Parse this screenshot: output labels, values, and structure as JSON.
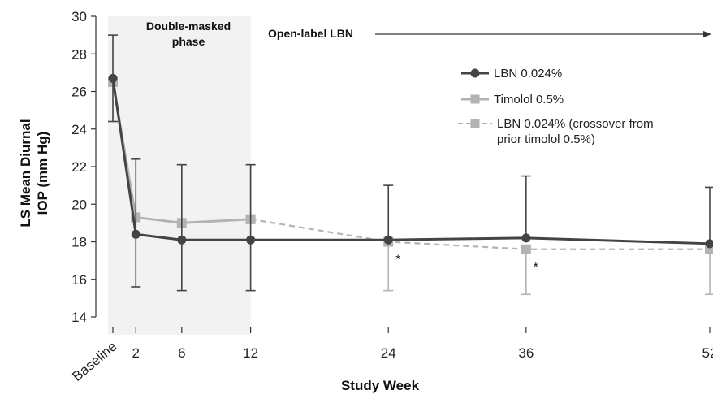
{
  "chart_data": {
    "type": "line",
    "xlabel": "Study Week",
    "ylabel_lines": [
      "LS Mean Diurnal",
      "IOP (mm Hg)"
    ],
    "ylim": [
      14,
      30
    ],
    "yticks": [
      14,
      16,
      18,
      20,
      22,
      24,
      26,
      28,
      30
    ],
    "xticks": [
      {
        "value": 0,
        "label": "Baseline"
      },
      {
        "value": 2,
        "label": "2"
      },
      {
        "value": 6,
        "label": "6"
      },
      {
        "value": 12,
        "label": "12"
      },
      {
        "value": 24,
        "label": "24"
      },
      {
        "value": 36,
        "label": "36"
      },
      {
        "value": 52,
        "label": "52"
      }
    ],
    "phases": {
      "double_masked_lines": [
        "Double-masked",
        "phase"
      ],
      "open_label": "Open-label LBN"
    },
    "series": [
      {
        "name": "LBN 0.024%",
        "color": "#444444",
        "marker": "circle",
        "style": "solid",
        "x": [
          0,
          2,
          6,
          12,
          24,
          36,
          52
        ],
        "y": [
          26.7,
          18.4,
          18.1,
          18.1,
          18.1,
          18.2,
          17.9
        ],
        "err_high": [
          29.0,
          22.4,
          22.1,
          22.1,
          21.0,
          21.5,
          20.9
        ],
        "err_low": [
          24.4,
          15.6,
          15.4,
          15.4,
          null,
          null,
          null
        ]
      },
      {
        "name": "Timolol 0.5%",
        "color": "#b3b3b3",
        "marker": "square",
        "style": "solid",
        "x": [
          0,
          2,
          6,
          12
        ],
        "y": [
          26.5,
          19.3,
          19.0,
          19.2
        ],
        "err_high": [
          null,
          22.4,
          22.1,
          22.1
        ],
        "err_low": [
          null,
          null,
          null,
          null
        ]
      },
      {
        "name": "LBN 0.024% (crossover from prior timolol 0.5%)",
        "name_lines": [
          "LBN 0.024% (crossover from",
          "prior timolol 0.5%)"
        ],
        "color": "#b3b3b3",
        "marker": "square",
        "style": "dashed",
        "x": [
          12,
          24,
          36,
          52
        ],
        "y": [
          19.2,
          18.0,
          17.6,
          17.6
        ],
        "err_high": [
          null,
          null,
          null,
          null
        ],
        "err_low": [
          null,
          15.4,
          15.2,
          15.2
        ]
      }
    ],
    "annotations": [
      {
        "text": "*",
        "x": 24,
        "y": 17.3
      },
      {
        "text": "*",
        "x": 36,
        "y": 16.9
      }
    ],
    "shaded_region": {
      "x_from": 0,
      "x_to": 12,
      "label": "Double-masked phase"
    },
    "legend": "top-right"
  }
}
